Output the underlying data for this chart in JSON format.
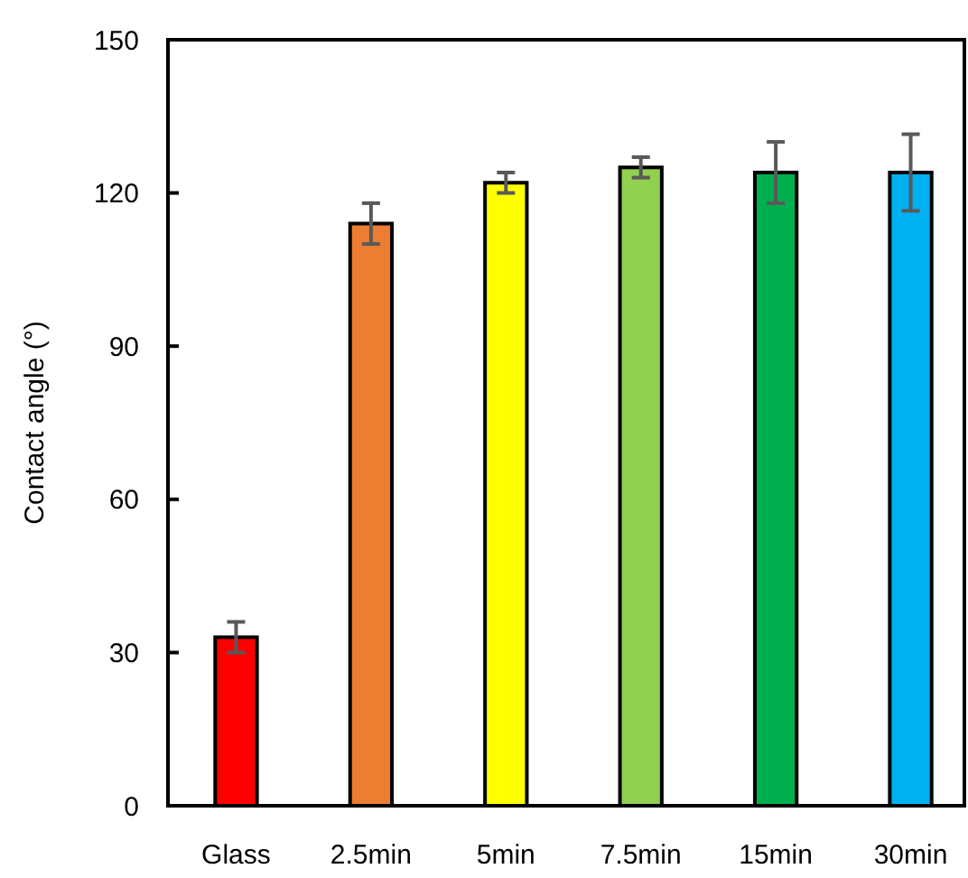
{
  "chart_data": {
    "type": "bar",
    "ylabel": "Contact angle (°)",
    "categories": [
      "Glass",
      "2.5min",
      "5min",
      "7.5min",
      "15min",
      "30min"
    ],
    "values": [
      33,
      114,
      122,
      125,
      124,
      124
    ],
    "colors": [
      "#ff0000",
      "#ed7d31",
      "#ffff00",
      "#92d050",
      "#00b050",
      "#00b0f0"
    ],
    "errors": [
      3,
      4,
      2,
      2,
      6,
      7.5
    ],
    "ylim": [
      0,
      150
    ],
    "yticks": [
      0,
      30,
      60,
      90,
      120,
      150
    ],
    "grid": false
  }
}
